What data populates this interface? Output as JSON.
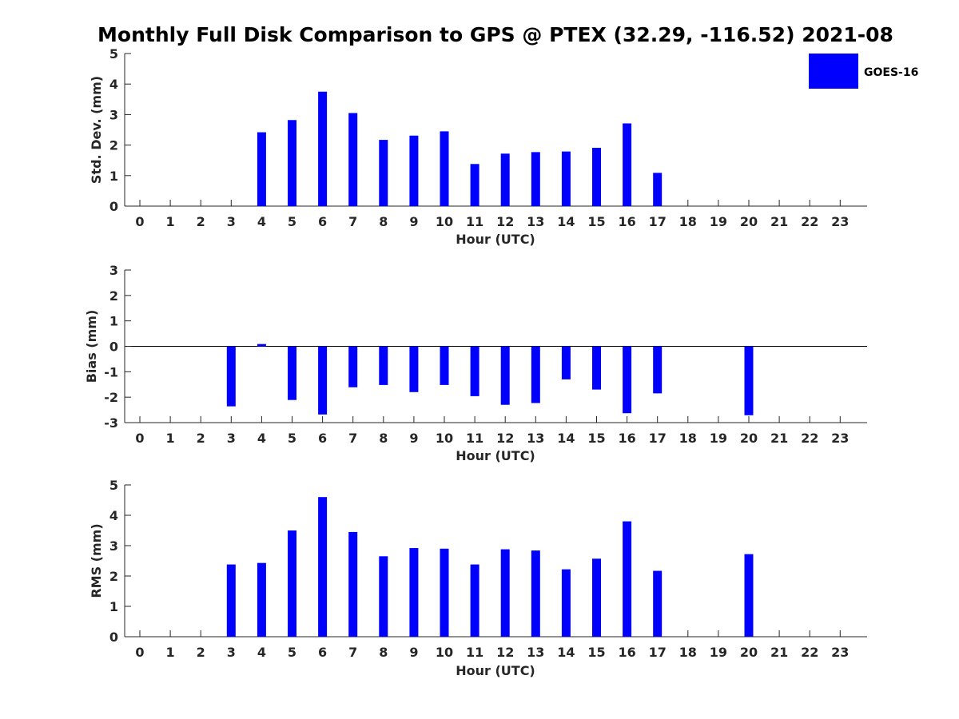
{
  "title": "Monthly Full Disk Comparison to GPS @ PTEX (32.29, -116.52) 2021-08",
  "colors": {
    "bar": "#0000ff",
    "axis": "#262626",
    "background": "#ffffff"
  },
  "legend": {
    "label": "GOES-16",
    "position": "top-right"
  },
  "chart_data": [
    {
      "type": "bar",
      "ylabel": "Std. Dev. (mm)",
      "xlabel": "Hour (UTC)",
      "ylim": [
        0,
        5
      ],
      "yticks": [
        0,
        1,
        2,
        3,
        4,
        5
      ],
      "categories": [
        0,
        1,
        2,
        3,
        4,
        5,
        6,
        7,
        8,
        9,
        10,
        11,
        12,
        13,
        14,
        15,
        16,
        17,
        18,
        19,
        20,
        21,
        22,
        23
      ],
      "series": [
        {
          "name": "GOES-16",
          "values": [
            null,
            null,
            null,
            null,
            2.42,
            2.82,
            3.75,
            3.05,
            2.17,
            2.31,
            2.45,
            1.38,
            1.72,
            1.77,
            1.79,
            1.91,
            2.71,
            1.09,
            null,
            null,
            null,
            null,
            null,
            null
          ]
        }
      ]
    },
    {
      "type": "bar",
      "ylabel": "Bias (mm)",
      "xlabel": "Hour (UTC)",
      "ylim": [
        -3,
        3
      ],
      "yticks": [
        -3,
        -2,
        -1,
        0,
        1,
        2,
        3
      ],
      "zero_line": true,
      "categories": [
        0,
        1,
        2,
        3,
        4,
        5,
        6,
        7,
        8,
        9,
        10,
        11,
        12,
        13,
        14,
        15,
        16,
        17,
        18,
        19,
        20,
        21,
        22,
        23
      ],
      "series": [
        {
          "name": "GOES-16",
          "values": [
            null,
            null,
            null,
            -2.36,
            0.09,
            -2.11,
            -2.68,
            -1.61,
            -1.52,
            -1.8,
            -1.52,
            -1.96,
            -2.3,
            -2.23,
            -1.3,
            -1.7,
            -2.63,
            -1.85,
            null,
            null,
            -2.71,
            null,
            null,
            null
          ]
        }
      ]
    },
    {
      "type": "bar",
      "ylabel": "RMS (mm)",
      "xlabel": "Hour (UTC)",
      "ylim": [
        0,
        5
      ],
      "yticks": [
        0,
        1,
        2,
        3,
        4,
        5
      ],
      "categories": [
        0,
        1,
        2,
        3,
        4,
        5,
        6,
        7,
        8,
        9,
        10,
        11,
        12,
        13,
        14,
        15,
        16,
        17,
        18,
        19,
        20,
        21,
        22,
        23
      ],
      "series": [
        {
          "name": "GOES-16",
          "values": [
            null,
            null,
            null,
            2.38,
            2.43,
            3.5,
            4.6,
            3.45,
            2.65,
            2.92,
            2.9,
            2.38,
            2.88,
            2.84,
            2.22,
            2.57,
            3.8,
            2.17,
            null,
            null,
            2.72,
            null,
            null,
            null
          ]
        }
      ]
    }
  ]
}
